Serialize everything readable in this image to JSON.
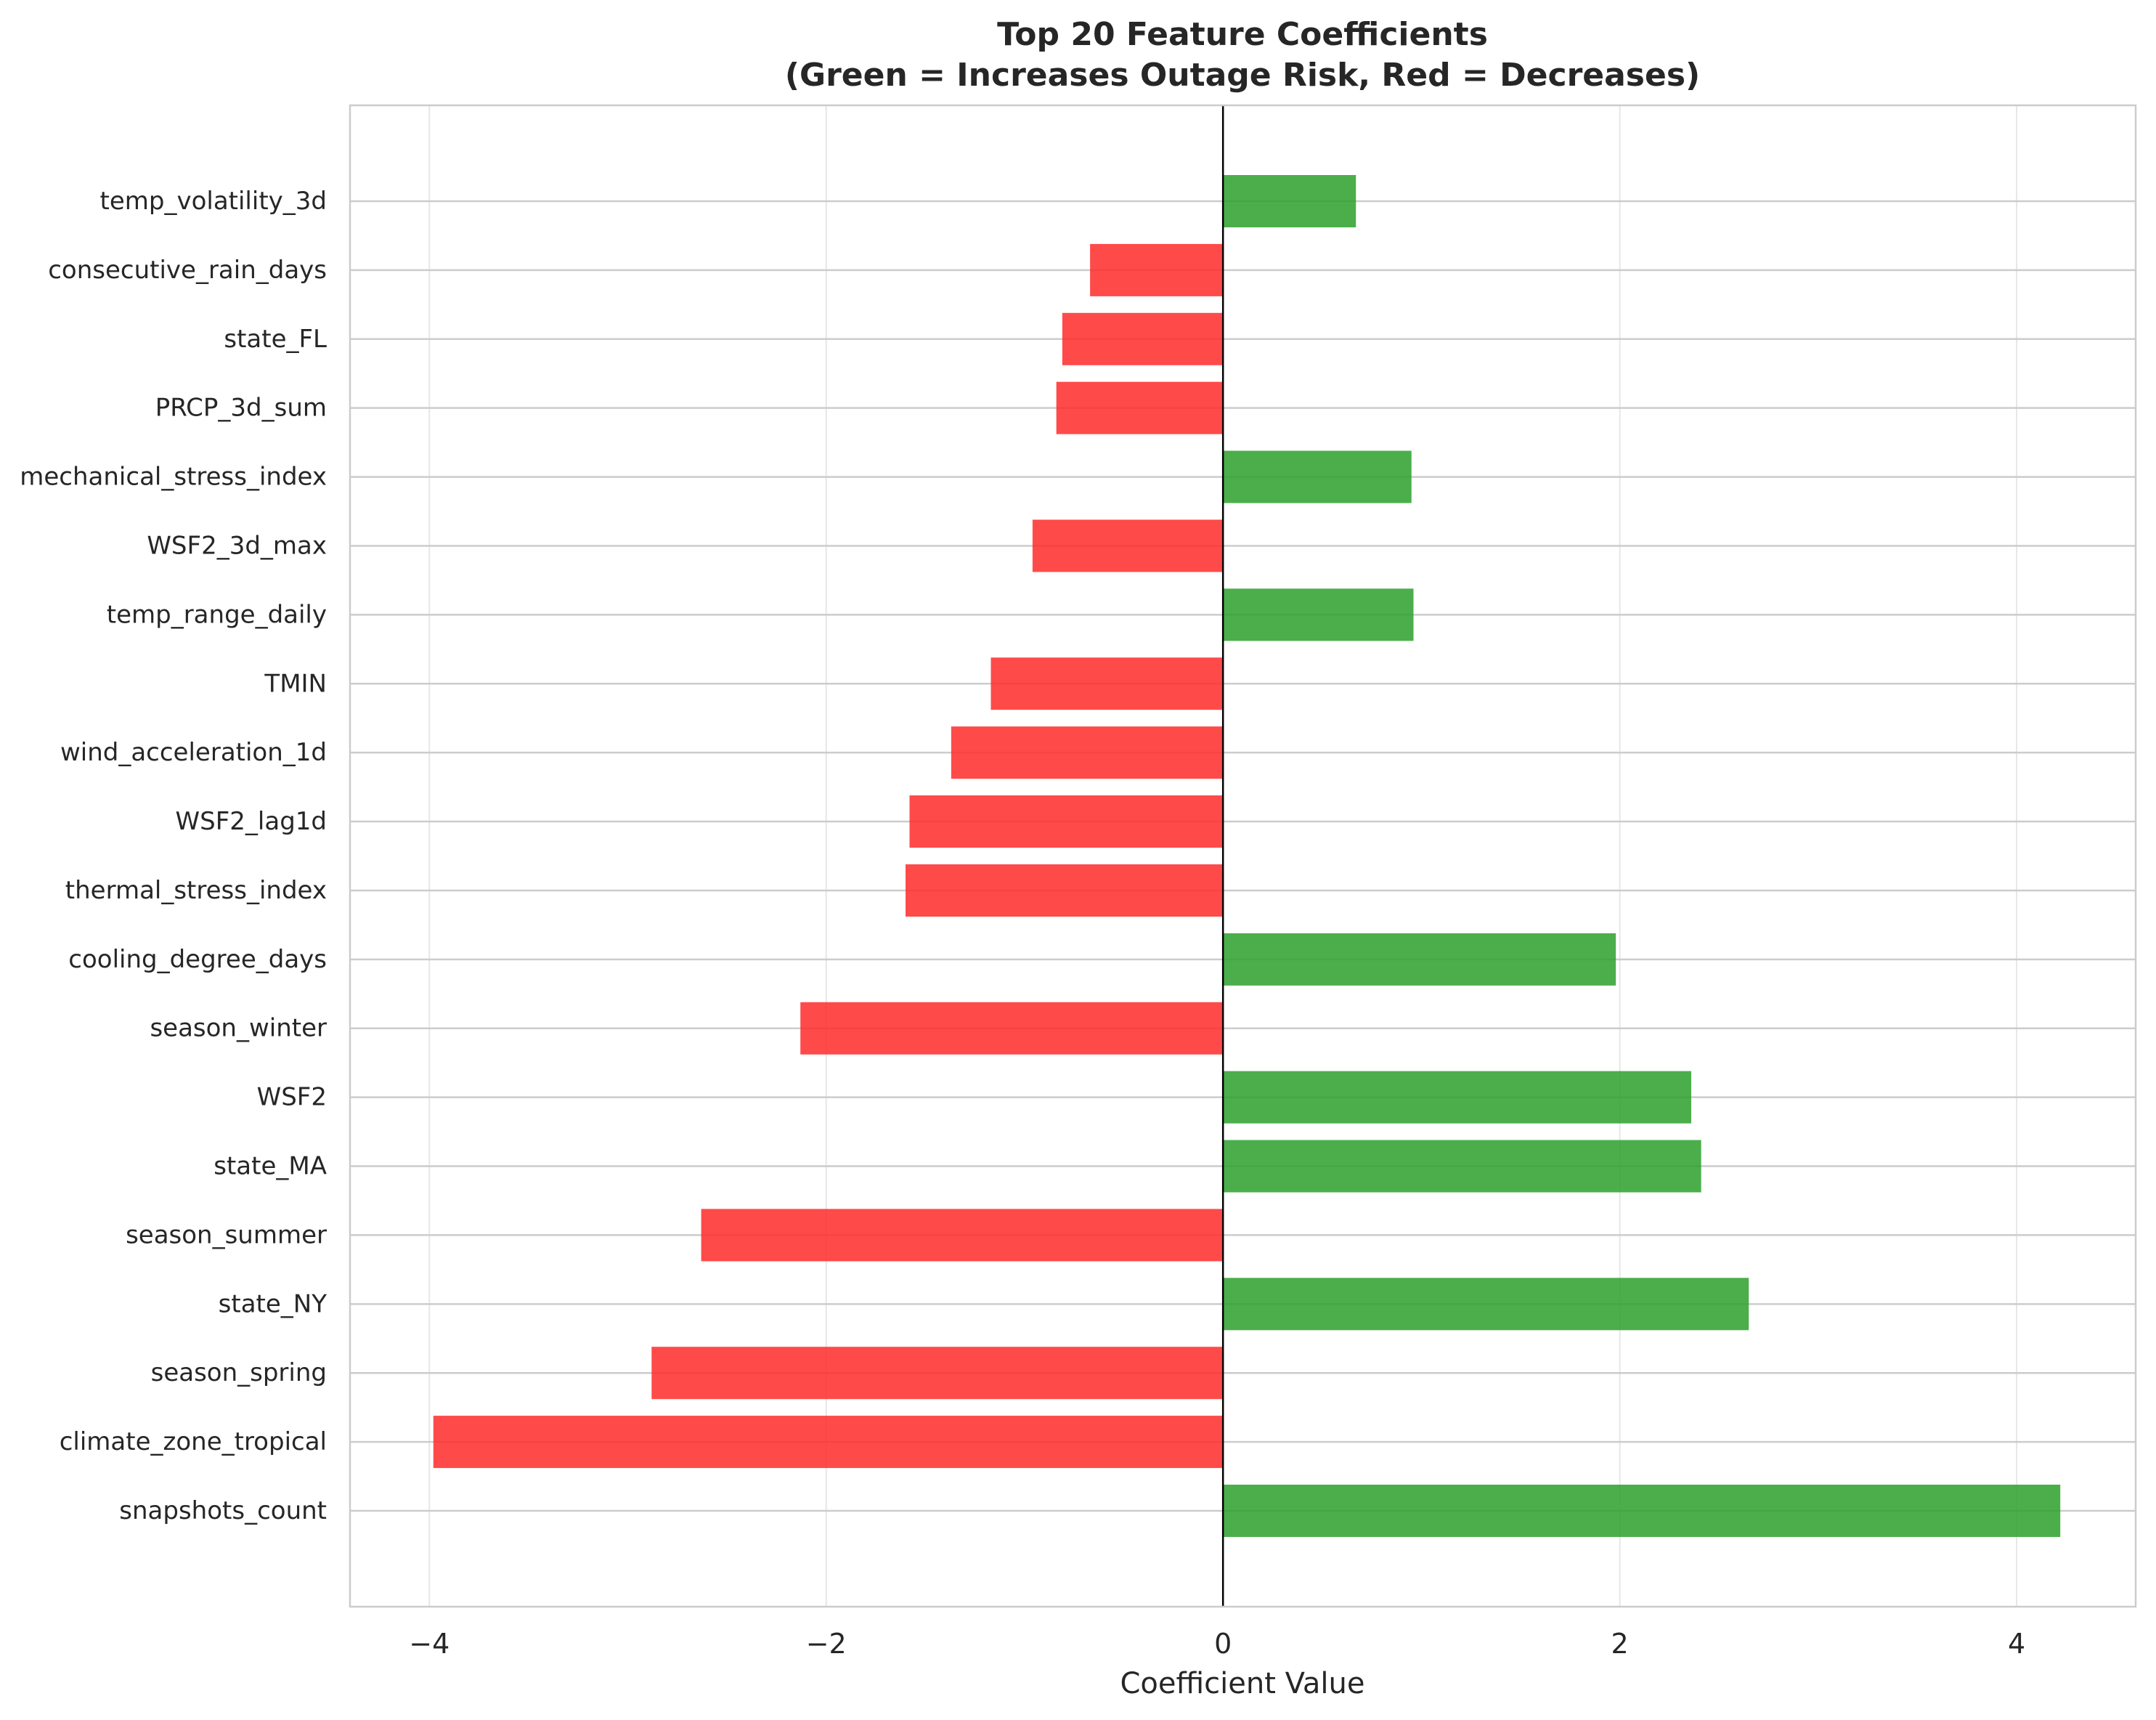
{
  "chart_data": {
    "type": "bar",
    "orientation": "horizontal",
    "title_line1": "Top 20 Feature Coefficients",
    "title_line2": "(Green = Increases Outage Risk, Red = Decreases)",
    "xlabel": "Coefficient Value",
    "ylabel": "",
    "xlim": [
      -4.4,
      4.6
    ],
    "xticks": [
      -4,
      -2,
      0,
      2,
      4
    ],
    "xtick_labels": [
      "−4",
      "−2",
      "0",
      "2",
      "4"
    ],
    "grid": true,
    "categories": [
      "temp_volatility_3d",
      "consecutive_rain_days",
      "state_FL",
      "PRCP_3d_sum",
      "mechanical_stress_index",
      "WSF2_3d_max",
      "temp_range_daily",
      "TMIN",
      "wind_acceleration_1d",
      "WSF2_lag1d",
      "thermal_stress_index",
      "cooling_degree_days",
      "season_winter",
      "WSF2",
      "state_MA",
      "season_summer",
      "state_NY",
      "season_spring",
      "climate_zone_tropical",
      "snapshots_count"
    ],
    "values": [
      0.67,
      -0.67,
      -0.81,
      -0.84,
      0.95,
      -0.96,
      0.96,
      -1.17,
      -1.37,
      -1.58,
      -1.6,
      1.98,
      -2.13,
      2.36,
      2.41,
      -2.63,
      2.65,
      -2.88,
      -3.98,
      4.22
    ],
    "positive_color": "#2ca02c",
    "negative_color": "#ff2a2a"
  }
}
